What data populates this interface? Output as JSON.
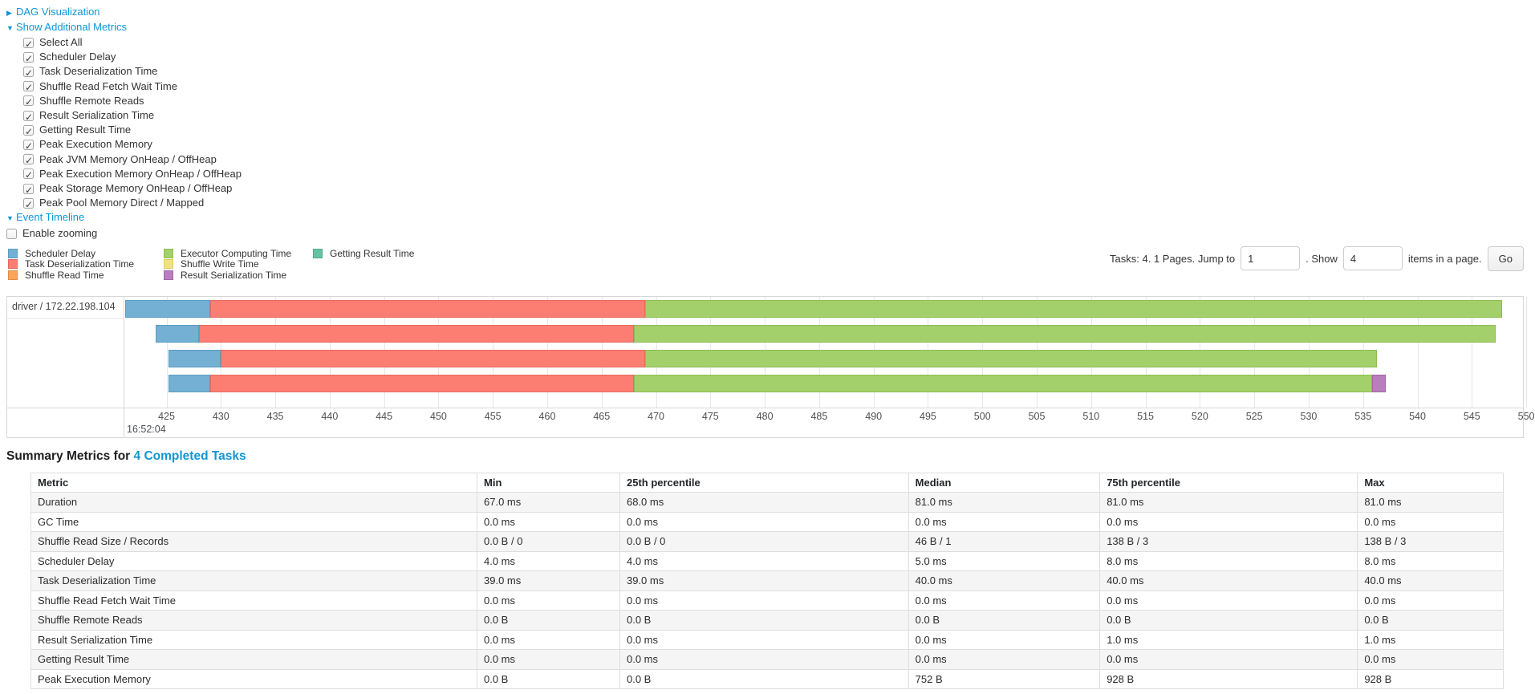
{
  "controls": {
    "dag": {
      "label": "DAG Visualization",
      "arrow": "▶"
    },
    "metrics": {
      "label": "Show Additional Metrics",
      "arrow": "▼",
      "checkboxes": [
        {
          "label": "Select All",
          "checked": true
        },
        {
          "label": "Scheduler Delay",
          "checked": true
        },
        {
          "label": "Task Deserialization Time",
          "checked": true
        },
        {
          "label": "Shuffle Read Fetch Wait Time",
          "checked": true
        },
        {
          "label": "Shuffle Remote Reads",
          "checked": true
        },
        {
          "label": "Result Serialization Time",
          "checked": true
        },
        {
          "label": "Getting Result Time",
          "checked": true
        },
        {
          "label": "Peak Execution Memory",
          "checked": true
        },
        {
          "label": "Peak JVM Memory OnHeap / OffHeap",
          "checked": true
        },
        {
          "label": "Peak Execution Memory OnHeap / OffHeap",
          "checked": true
        },
        {
          "label": "Peak Storage Memory OnHeap / OffHeap",
          "checked": true
        },
        {
          "label": "Peak Pool Memory Direct / Mapped",
          "checked": true
        }
      ]
    },
    "event_timeline": {
      "label": "Event Timeline",
      "arrow": "▼"
    },
    "enable_zooming": {
      "label": "Enable zooming",
      "checked": false
    }
  },
  "colors": {
    "scheduler_delay": {
      "fill": "#74B0D4",
      "border": "#5C9CC1"
    },
    "task_deserialization": {
      "fill": "#FC7D72",
      "border": "#E76A60"
    },
    "shuffle_read": {
      "fill": "#FAA45C",
      "border": "#E18E45"
    },
    "executor_computing": {
      "fill": "#A3D06A",
      "border": "#8CBD53"
    },
    "shuffle_write": {
      "fill": "#F2E183",
      "border": "#DCCB66"
    },
    "result_serialization": {
      "fill": "#B97EBE",
      "border": "#A264A8"
    },
    "getting_result": {
      "fill": "#68C2A2",
      "border": "#50AC8B"
    }
  },
  "legend": {
    "columns": [
      [
        {
          "key": "scheduler_delay",
          "label": "Scheduler Delay"
        },
        {
          "key": "task_deserialization",
          "label": "Task Deserialization Time"
        },
        {
          "key": "shuffle_read",
          "label": "Shuffle Read Time"
        }
      ],
      [
        {
          "key": "executor_computing",
          "label": "Executor Computing Time"
        },
        {
          "key": "shuffle_write",
          "label": "Shuffle Write Time"
        },
        {
          "key": "result_serialization",
          "label": "Result Serialization Time"
        }
      ],
      [
        {
          "key": "getting_result",
          "label": "Getting Result Time"
        }
      ]
    ]
  },
  "pagination": {
    "text_before": "Tasks: 4. 1 Pages. Jump to",
    "jump_value": "1",
    "mid_text": ". Show",
    "show_value": "4",
    "after_text": "items in a page.",
    "go_label": "Go"
  },
  "chart_data": {
    "type": "timeline",
    "group_label": "driver / 172.22.198.104",
    "axis": {
      "start": 421.2,
      "end": 549.7,
      "first_tick": 425,
      "last_tick": 550,
      "tick_step": 5,
      "time_label": "16:52:04",
      "units": "ms within second 16:52:04"
    },
    "tasks": [
      {
        "segments": [
          {
            "type": "scheduler_delay",
            "from": 421.2,
            "to": 429.0
          },
          {
            "type": "task_deserialization",
            "from": 429.0,
            "to": 469.0
          },
          {
            "type": "executor_computing",
            "from": 469.0,
            "to": 547.8
          }
        ]
      },
      {
        "segments": [
          {
            "type": "scheduler_delay",
            "from": 424.0,
            "to": 428.0
          },
          {
            "type": "task_deserialization",
            "from": 428.0,
            "to": 468.0
          },
          {
            "type": "executor_computing",
            "from": 468.0,
            "to": 547.2
          }
        ]
      },
      {
        "segments": [
          {
            "type": "scheduler_delay",
            "from": 425.2,
            "to": 430.0
          },
          {
            "type": "task_deserialization",
            "from": 430.0,
            "to": 469.0
          },
          {
            "type": "executor_computing",
            "from": 469.0,
            "to": 536.3
          }
        ]
      },
      {
        "segments": [
          {
            "type": "scheduler_delay",
            "from": 425.2,
            "to": 429.0
          },
          {
            "type": "task_deserialization",
            "from": 429.0,
            "to": 468.0
          },
          {
            "type": "executor_computing",
            "from": 468.0,
            "to": 535.8
          },
          {
            "type": "result_serialization",
            "from": 535.8,
            "to": 537.1
          }
        ]
      }
    ]
  },
  "summary": {
    "title_prefix": "Summary Metrics for",
    "title_link": "4 Completed Tasks",
    "table": {
      "columns": [
        "Metric",
        "Min",
        "25th percentile",
        "Median",
        "75th percentile",
        "Max"
      ],
      "col_widths": [
        "30.3%",
        "9.7%",
        "19.6%",
        "13.0%",
        "17.5%",
        "9.9%"
      ],
      "rows": [
        [
          "Duration",
          "67.0 ms",
          "68.0 ms",
          "81.0 ms",
          "81.0 ms",
          "81.0 ms"
        ],
        [
          "GC Time",
          "0.0 ms",
          "0.0 ms",
          "0.0 ms",
          "0.0 ms",
          "0.0 ms"
        ],
        [
          "Shuffle Read Size / Records",
          "0.0 B / 0",
          "0.0 B / 0",
          "46 B / 1",
          "138 B / 3",
          "138 B / 3"
        ],
        [
          "Scheduler Delay",
          "4.0 ms",
          "4.0 ms",
          "5.0 ms",
          "8.0 ms",
          "8.0 ms"
        ],
        [
          "Task Deserialization Time",
          "39.0 ms",
          "39.0 ms",
          "40.0 ms",
          "40.0 ms",
          "40.0 ms"
        ],
        [
          "Shuffle Read Fetch Wait Time",
          "0.0 ms",
          "0.0 ms",
          "0.0 ms",
          "0.0 ms",
          "0.0 ms"
        ],
        [
          "Shuffle Remote Reads",
          "0.0 B",
          "0.0 B",
          "0.0 B",
          "0.0 B",
          "0.0 B"
        ],
        [
          "Result Serialization Time",
          "0.0 ms",
          "0.0 ms",
          "0.0 ms",
          "1.0 ms",
          "1.0 ms"
        ],
        [
          "Getting Result Time",
          "0.0 ms",
          "0.0 ms",
          "0.0 ms",
          "0.0 ms",
          "0.0 ms"
        ],
        [
          "Peak Execution Memory",
          "0.0 B",
          "0.0 B",
          "752 B",
          "928 B",
          "928 B"
        ]
      ]
    }
  }
}
